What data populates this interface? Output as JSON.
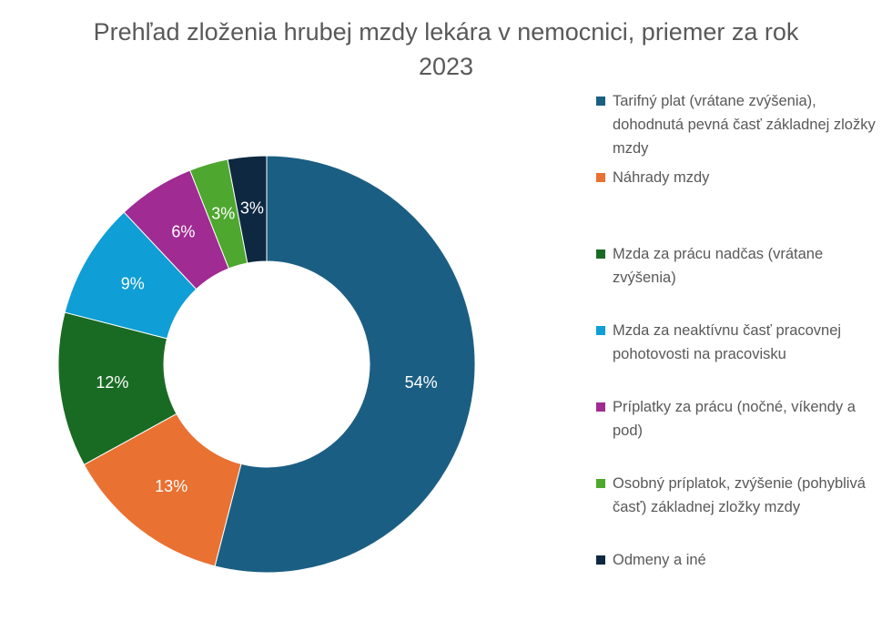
{
  "chart_data": {
    "type": "donut",
    "title": "Prehľad zloženia hrubej mzdy lekára v nemocnici, priemer za rok 2023",
    "categories": [
      "Tarifný plat (vrátane zvýšenia), dohodnutá pevná časť základnej zložky mzdy",
      "Náhrady mzdy",
      "Mzda za prácu nadčas (vrátane zvýšenia)",
      "Mzda za neaktívnu časť pracovnej pohotovosti na pracovisku",
      "Príplatky za prácu (nočné, víkendy a pod)",
      "Osobný príplatok, zvýšenie (pohyblivá časť) základnej zložky mzdy",
      "Odmeny a iné"
    ],
    "values": [
      54,
      13,
      12,
      9,
      6,
      3,
      3
    ],
    "value_labels": [
      "54%",
      "13%",
      "12%",
      "9%",
      "6%",
      "3%",
      "3%"
    ],
    "colors": [
      "#1b5e83",
      "#e97132",
      "#196b24",
      "#0f9ed5",
      "#a02b93",
      "#4ea72e",
      "#0e2841"
    ],
    "legend": "right"
  }
}
